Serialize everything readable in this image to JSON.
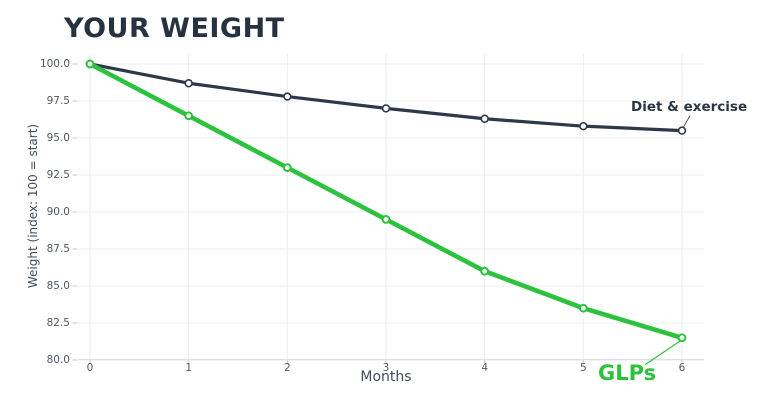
{
  "title": "YOUR WEIGHT",
  "chart_data": {
    "type": "line",
    "title": "YOUR WEIGHT",
    "xlabel": "Months",
    "ylabel": "Weight (index: 100 = start)",
    "x": [
      0,
      1,
      2,
      3,
      4,
      5,
      6
    ],
    "x_ticks": [
      "0",
      "1",
      "2",
      "3",
      "4",
      "5",
      "6"
    ],
    "y_ticks": [
      "100.0",
      "97.5",
      "95.0",
      "92.5",
      "90.0",
      "87.5",
      "85.0",
      "82.5",
      "80.0"
    ],
    "xlim": [
      0,
      6
    ],
    "ylim": [
      80,
      100
    ],
    "grid": true,
    "legend_position": "end-of-line-annotations",
    "series": [
      {
        "name": "Diet & exercise",
        "color": "#2c3949",
        "values": [
          100.0,
          98.7,
          97.8,
          97.0,
          96.3,
          95.8,
          95.5
        ]
      },
      {
        "name": "GLPs",
        "color": "#2cc23e",
        "values": [
          100.0,
          96.5,
          93.0,
          89.5,
          86.0,
          83.5,
          81.5
        ]
      }
    ],
    "colors": {
      "background": "#ffffff",
      "gridline": "#ebedf2",
      "axis_line": "#dde0e4",
      "tick": "#c6cad0",
      "tick_text": "#4e5864",
      "axis_title_text": "#414c59",
      "chart_title_text": "#273241",
      "marker_fill": "#ffffff"
    }
  }
}
